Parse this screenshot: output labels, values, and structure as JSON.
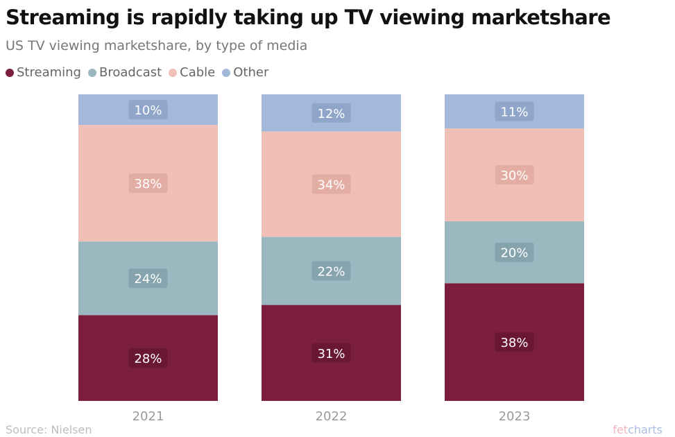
{
  "title": "Streaming is rapidly taking up TV viewing marketshare",
  "subtitle": "US TV viewing marketshare, by type of media",
  "source": "Source: Nielsen",
  "brand": {
    "part1": "fet",
    "part2": "charts"
  },
  "chart_data": {
    "type": "bar",
    "stacked": true,
    "categories": [
      "2021",
      "2022",
      "2023"
    ],
    "series": [
      {
        "name": "Streaming",
        "values": [
          28,
          31,
          38
        ],
        "color": "#7b1f3d",
        "labels": [
          "28%",
          "31%",
          "38%"
        ]
      },
      {
        "name": "Broadcast",
        "values": [
          24,
          22,
          20
        ],
        "color": "#9bb7c0",
        "labels": [
          "24%",
          "22%",
          "20%"
        ]
      },
      {
        "name": "Cable",
        "values": [
          38,
          34,
          30
        ],
        "color": "#f0c0b6",
        "labels": [
          "38%",
          "34%",
          "30%"
        ]
      },
      {
        "name": "Other",
        "values": [
          10,
          12,
          11
        ],
        "color": "#a4b8d9",
        "labels": [
          "10%",
          "12%",
          "11%"
        ]
      }
    ],
    "legend_position": "top-left",
    "grid": false
  }
}
